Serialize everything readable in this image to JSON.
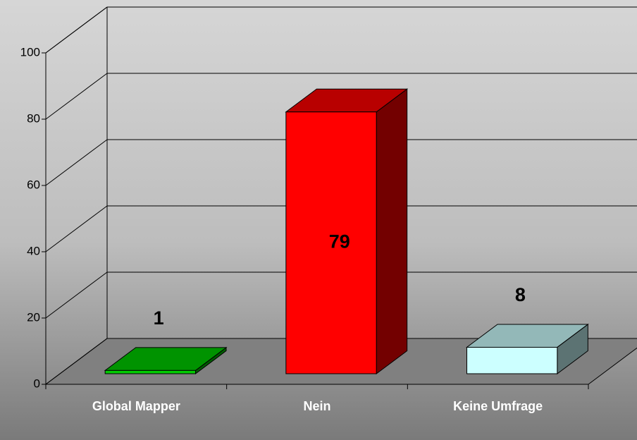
{
  "chart_data": {
    "type": "bar3d",
    "categories": [
      "Global Mapper",
      "Nein",
      "Keine Umfrage"
    ],
    "values": [
      1,
      79,
      8
    ],
    "colors": [
      "#00cc00",
      "#ff0000",
      "#ccffff"
    ],
    "ylim": [
      0,
      100
    ],
    "yticks": [
      0,
      20,
      40,
      60,
      80,
      100
    ],
    "grid": true
  }
}
